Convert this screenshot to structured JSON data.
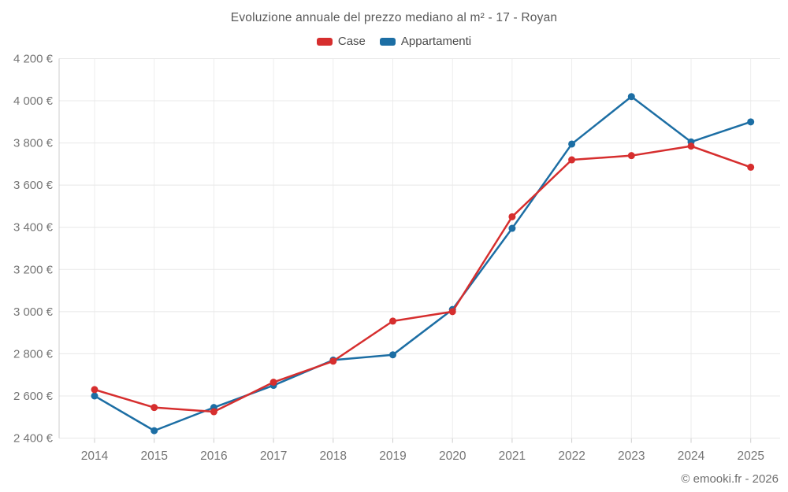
{
  "title": "Evoluzione annuale del prezzo mediano al m² - 17 - Royan",
  "footer": "© emooki.fr - 2026",
  "legend": {
    "items": [
      {
        "label": "Case",
        "color": "#d62e2e"
      },
      {
        "label": "Appartamenti",
        "color": "#1c6ea4"
      }
    ]
  },
  "chart_data": {
    "type": "line",
    "title": "Evoluzione annuale del prezzo mediano al m² - 17 - Royan",
    "x": [
      2014,
      2015,
      2016,
      2017,
      2018,
      2019,
      2020,
      2021,
      2022,
      2023,
      2024,
      2025
    ],
    "series": [
      {
        "name": "Case",
        "color": "#d62e2e",
        "values": [
          2630,
          2545,
          2525,
          2665,
          2765,
          2955,
          3000,
          3450,
          3720,
          3740,
          3785,
          3685
        ]
      },
      {
        "name": "Appartamenti",
        "color": "#1c6ea4",
        "values": [
          2600,
          2435,
          2545,
          2650,
          2770,
          2795,
          3010,
          3395,
          3795,
          4020,
          3805,
          3900
        ]
      }
    ],
    "ylim": [
      2400,
      4200
    ],
    "ytick_step": 200,
    "ytick_labels": [
      "2 400 €",
      "2 600 €",
      "2 800 €",
      "3 000 €",
      "3 200 €",
      "3 400 €",
      "3 600 €",
      "3 800 €",
      "4 000 €",
      "4 200 €"
    ],
    "xlabel": "",
    "ylabel": "",
    "grid": true,
    "legend_position": "top",
    "colors": {
      "grid_h": "#e8e8e8",
      "grid_v": "#ededed",
      "axis": "#cccccc",
      "tick": "#cccccc",
      "axis_text": "#757575"
    }
  }
}
